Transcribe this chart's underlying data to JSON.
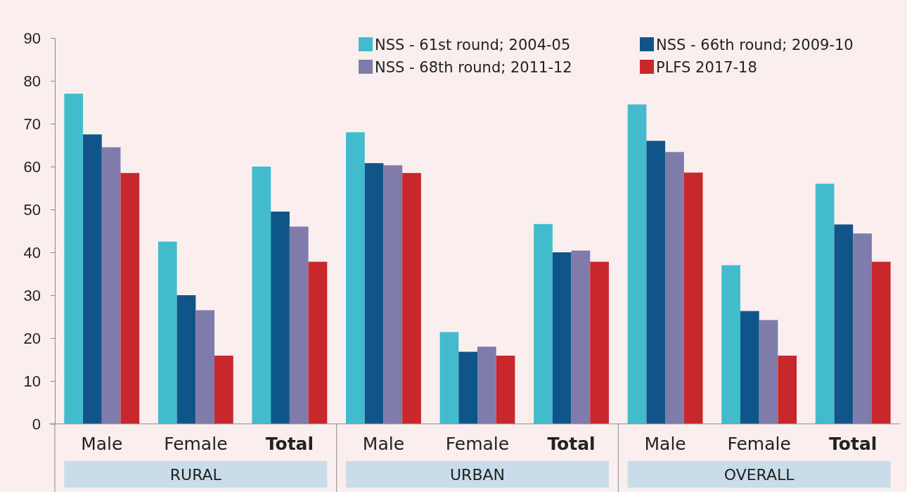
{
  "chart_data": {
    "type": "bar",
    "categories": [
      "Male",
      "Female",
      "Total",
      "Male",
      "Female",
      "Total",
      "Male",
      "Female",
      "Total"
    ],
    "series": [
      {
        "name": "NSS - 61st round; 2004-05",
        "color": "#42bccc",
        "values": [
          77,
          42.5,
          60,
          68,
          21.4,
          46.6,
          74.5,
          37,
          56
        ]
      },
      {
        "name": "NSS - 66th round; 2009-10",
        "color": "#0f5589",
        "values": [
          67.5,
          30,
          49.5,
          60.8,
          16.8,
          40,
          66,
          26.3,
          46.5
        ]
      },
      {
        "name": "NSS - 68th round; 2011-12",
        "color": "#7f7bab",
        "values": [
          64.5,
          26.5,
          46,
          60.3,
          18,
          40.4,
          63.4,
          24.2,
          44.4
        ]
      },
      {
        "name": "PLFS 2017-18",
        "color": "#c8282b",
        "values": [
          58.5,
          15.9,
          37.8,
          58.5,
          15.9,
          37.8,
          58.6,
          15.9,
          37.8
        ]
      }
    ],
    "annotations": [
      "RURAL",
      "URBAN",
      "OVERALL"
    ],
    "ylim": [
      0,
      90
    ],
    "yticks": [
      0,
      10,
      20,
      30,
      40,
      50,
      60,
      70,
      80,
      90
    ],
    "grid": false,
    "legend": "top right"
  }
}
